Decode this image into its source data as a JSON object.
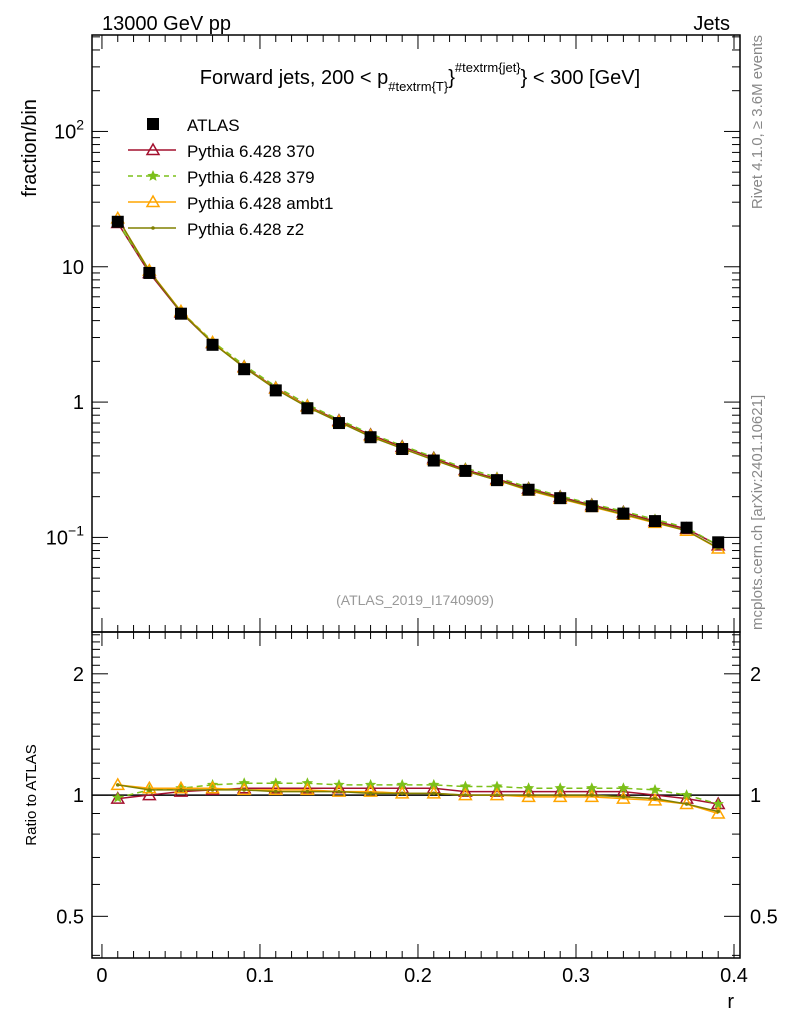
{
  "chart_data": {
    "type": "line",
    "header_left": "13000 GeV pp",
    "header_right": "Jets",
    "title_parts": [
      "Forward jets, 200 < p",
      "#textrm{T}",
      "}",
      "#textrm{jet}",
      "} < 300 [GeV]"
    ],
    "ylabel": "fraction/bin",
    "ratio_ylabel": "Ratio to ATLAS",
    "xlabel": "r",
    "side_label_top": "Rivet 4.1.0, ≥ 3.6M events",
    "side_label_bottom": "mcplots.cern.ch [arXiv:2401.10621]",
    "analysis_label": "(ATLAS_2019_I1740909)",
    "xlim": [
      -0.0063,
      0.4038
    ],
    "ylim": [
      0.02,
      516
    ],
    "ratio_ylim": [
      0.394,
      2.54
    ],
    "yscale": "log",
    "ratio_yscale": "log",
    "x_ticks": [
      0,
      0.1,
      0.2,
      0.3,
      0.4
    ],
    "x_tick_labels": [
      "0",
      "0.1",
      "0.2",
      "0.3",
      "0.4"
    ],
    "y_ticks": [
      0.1,
      1,
      10,
      100
    ],
    "y_tick_labels": [
      "10^-1",
      "1",
      "10",
      "10^2"
    ],
    "ratio_ticks": [
      0.5,
      1,
      2
    ],
    "ratio_tick_labels": [
      "0.5",
      "1",
      "2"
    ],
    "x": [
      0.01,
      0.03,
      0.05,
      0.07,
      0.09,
      0.11,
      0.13,
      0.15,
      0.17,
      0.19,
      0.21,
      0.23,
      0.25,
      0.27,
      0.29,
      0.31,
      0.33,
      0.35,
      0.37,
      0.39
    ],
    "data": {
      "name": "ATLAS",
      "color": "#000000",
      "values": [
        21.5,
        9.0,
        4.5,
        2.65,
        1.75,
        1.22,
        0.9,
        0.7,
        0.55,
        0.45,
        0.37,
        0.31,
        0.265,
        0.225,
        0.195,
        0.17,
        0.15,
        0.132,
        0.118,
        0.092
      ]
    },
    "series": [
      {
        "name": "Pythia 6.428 370",
        "color": "#a3102e",
        "marker": "triangle",
        "dash": false,
        "ratio": [
          0.98,
          1.0,
          1.02,
          1.03,
          1.04,
          1.04,
          1.04,
          1.04,
          1.04,
          1.04,
          1.04,
          1.02,
          1.02,
          1.02,
          1.02,
          1.02,
          1.02,
          1.0,
          0.98,
          0.95
        ]
      },
      {
        "name": "Pythia 6.428 379",
        "color": "#7cc01a",
        "marker": "star",
        "dash": true,
        "ratio": [
          0.985,
          1.03,
          1.04,
          1.06,
          1.07,
          1.07,
          1.07,
          1.06,
          1.06,
          1.06,
          1.06,
          1.05,
          1.05,
          1.04,
          1.04,
          1.04,
          1.04,
          1.03,
          1.0,
          0.95
        ]
      },
      {
        "name": "Pythia 6.428 ambt1",
        "color": "#ffa500",
        "marker": "triangle",
        "dash": false,
        "ratio": [
          1.06,
          1.04,
          1.04,
          1.04,
          1.03,
          1.03,
          1.03,
          1.02,
          1.02,
          1.01,
          1.01,
          1.0,
          1.0,
          0.99,
          0.99,
          0.99,
          0.98,
          0.97,
          0.95,
          0.9
        ]
      },
      {
        "name": "Pythia 6.428 z2",
        "color": "#808000",
        "marker": "dot",
        "dash": false,
        "ratio": [
          1.06,
          1.03,
          1.03,
          1.03,
          1.03,
          1.02,
          1.02,
          1.02,
          1.01,
          1.01,
          1.01,
          1.0,
          1.0,
          1.0,
          1.0,
          1.0,
          0.99,
          0.98,
          0.95,
          0.91
        ]
      }
    ]
  }
}
